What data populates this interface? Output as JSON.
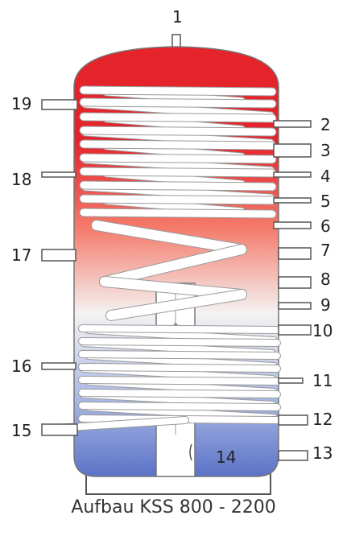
{
  "caption": "Aufbau KSS 800 - 2200",
  "labels": {
    "n1": "1",
    "n2": "2",
    "n3": "3",
    "n4": "4",
    "n5": "5",
    "n6": "6",
    "n7": "7",
    "n8": "8",
    "n9": "9",
    "n10": "10",
    "n11": "11",
    "n12": "12",
    "n13": "13",
    "n14": "14",
    "n15": "15",
    "n16": "16",
    "n17": "17",
    "n18": "18",
    "n19": "19"
  },
  "colors": {
    "hot": "#e5232b",
    "warm": "#f47a6a",
    "neutral": "#f4f2f2",
    "cool": "#a9b8e4",
    "cold": "#5b72c6",
    "coil_fill": "#ffffff",
    "coil_stroke": "#9a9a9a",
    "outline": "#555555"
  }
}
